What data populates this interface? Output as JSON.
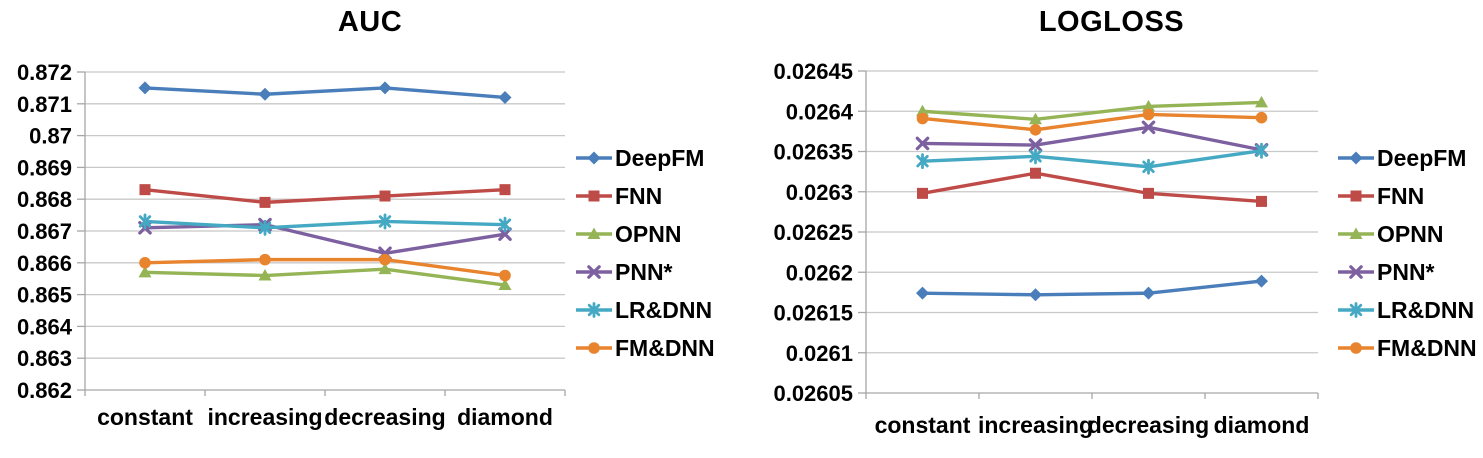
{
  "figure": {
    "background": "#ffffff",
    "grid_color": "#c8c8c8",
    "axis_color": "#a6a6a6"
  },
  "chart_data": [
    {
      "type": "line",
      "title": "AUC",
      "xlabel": "",
      "ylabel": "",
      "grid": true,
      "legend_position": "right",
      "categories": [
        "constant",
        "increasing",
        "decreasing",
        "diamond"
      ],
      "ylim": [
        0.862,
        0.872
      ],
      "ytick_step": 0.001,
      "ytick_labels": [
        "0.872",
        "0.871",
        "0.87",
        "0.869",
        "0.868",
        "0.867",
        "0.866",
        "0.865",
        "0.864",
        "0.863",
        "0.862"
      ],
      "series": [
        {
          "name": "DeepFM",
          "color": "#4a7ebb",
          "marker": "diamond",
          "values": [
            0.8715,
            0.8713,
            0.8715,
            0.8712
          ]
        },
        {
          "name": "FNN",
          "color": "#be4b48",
          "marker": "square",
          "values": [
            0.8683,
            0.8679,
            0.8681,
            0.8683
          ]
        },
        {
          "name": "OPNN",
          "color": "#94b455",
          "marker": "triangle",
          "values": [
            0.8657,
            0.8656,
            0.8658,
            0.8653
          ]
        },
        {
          "name": "PNN*",
          "color": "#7d60a0",
          "marker": "x",
          "values": [
            0.8671,
            0.8672,
            0.8663,
            0.8669
          ]
        },
        {
          "name": "LR&DNN",
          "color": "#45a9c3",
          "marker": "asterisk",
          "values": [
            0.8673,
            0.8671,
            0.8673,
            0.8672
          ]
        },
        {
          "name": "FM&DNN",
          "color": "#e8832e",
          "marker": "circle",
          "values": [
            0.866,
            0.8661,
            0.8661,
            0.8656
          ]
        }
      ]
    },
    {
      "type": "line",
      "title": "LOGLOSS",
      "xlabel": "",
      "ylabel": "",
      "grid": true,
      "legend_position": "right",
      "categories": [
        "constant",
        "increasing",
        "decreasing",
        "diamond"
      ],
      "ylim": [
        0.02605,
        0.02645
      ],
      "ytick_step": 5e-05,
      "ytick_labels": [
        "0.02645",
        "0.0264",
        "0.02635",
        "0.0263",
        "0.02625",
        "0.0262",
        "0.02615",
        "0.0261",
        "0.02605"
      ],
      "series": [
        {
          "name": "DeepFM",
          "color": "#4a7ebb",
          "marker": "diamond",
          "values": [
            0.026174,
            0.026172,
            0.026174,
            0.026189
          ]
        },
        {
          "name": "FNN",
          "color": "#be4b48",
          "marker": "square",
          "values": [
            0.026298,
            0.026323,
            0.026298,
            0.026288
          ]
        },
        {
          "name": "OPNN",
          "color": "#94b455",
          "marker": "triangle",
          "values": [
            0.0264,
            0.02639,
            0.026406,
            0.026411
          ]
        },
        {
          "name": "PNN*",
          "color": "#7d60a0",
          "marker": "x",
          "values": [
            0.02636,
            0.026358,
            0.02638,
            0.026352
          ]
        },
        {
          "name": "LR&DNN",
          "color": "#45a9c3",
          "marker": "asterisk",
          "values": [
            0.026338,
            0.026344,
            0.026331,
            0.026351
          ]
        },
        {
          "name": "FM&DNN",
          "color": "#e8832e",
          "marker": "circle",
          "values": [
            0.026391,
            0.026377,
            0.026396,
            0.026392
          ]
        }
      ]
    }
  ]
}
